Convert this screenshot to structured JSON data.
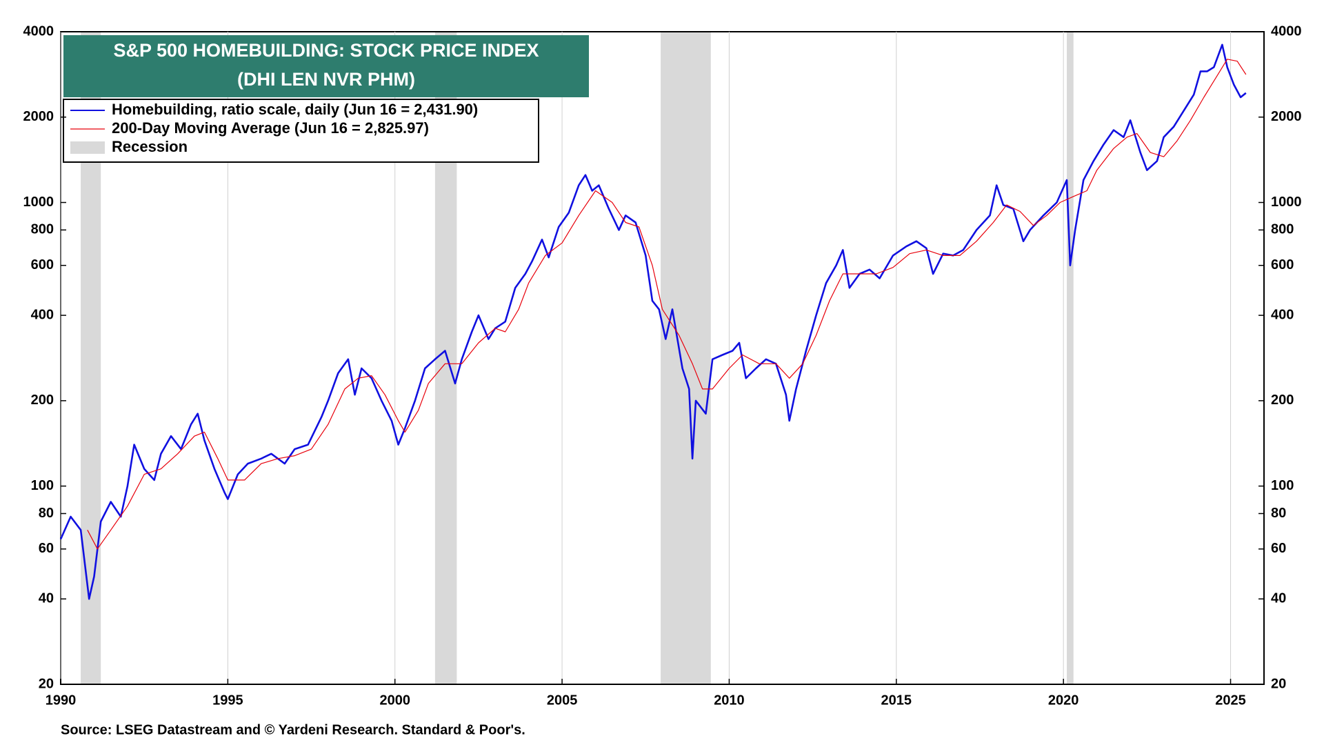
{
  "chart_data": {
    "type": "line",
    "title": "S&P 500 HOMEBUILDING: STOCK PRICE INDEX",
    "subtitle": "(DHI LEN NVR PHM)",
    "note": "Source: LSEG Datastream and © Yardeni Research. Standard & Poor's.",
    "log_scale": true,
    "xlim": [
      1990,
      2026
    ],
    "xticks": [
      1990,
      1995,
      2000,
      2005,
      2010,
      2015,
      2020,
      2025
    ],
    "ylim": [
      20,
      4000
    ],
    "yticks": [
      20,
      40,
      60,
      80,
      100,
      200,
      400,
      600,
      800,
      1000,
      2000,
      4000
    ],
    "y2lim": [
      20,
      4000
    ],
    "y2ticks": [
      20,
      40,
      60,
      80,
      100,
      200,
      400,
      600,
      800,
      1000,
      2000,
      4000
    ],
    "recession_label": "Recession",
    "recession_color": "#d9d9d9",
    "recessions": [
      [
        1990.6,
        1991.2
      ],
      [
        2001.2,
        2001.85
      ],
      [
        2007.95,
        2009.45
      ],
      [
        2020.1,
        2020.3
      ]
    ],
    "series": [
      {
        "name": "Homebuilding, ratio scale, daily (Jun 16 = 2,431.90)",
        "color": "#1010e0",
        "width": 2.6,
        "x": [
          1990.0,
          1990.3,
          1990.6,
          1990.85,
          1991.0,
          1991.2,
          1991.5,
          1991.8,
          1992.0,
          1992.2,
          1992.5,
          1992.8,
          1993.0,
          1993.3,
          1993.6,
          1993.9,
          1994.1,
          1994.3,
          1994.6,
          1994.9,
          1995.0,
          1995.3,
          1995.6,
          1996.0,
          1996.3,
          1996.7,
          1997.0,
          1997.4,
          1997.8,
          1998.0,
          1998.3,
          1998.6,
          1998.8,
          1999.0,
          1999.3,
          1999.6,
          1999.9,
          2000.1,
          2000.3,
          2000.6,
          2000.9,
          2001.2,
          2001.5,
          2001.8,
          2002.0,
          2002.3,
          2002.5,
          2002.8,
          2003.0,
          2003.3,
          2003.6,
          2003.9,
          2004.1,
          2004.4,
          2004.6,
          2004.9,
          2005.2,
          2005.5,
          2005.7,
          2005.9,
          2006.1,
          2006.4,
          2006.7,
          2006.9,
          2007.2,
          2007.5,
          2007.7,
          2007.9,
          2008.1,
          2008.3,
          2008.6,
          2008.8,
          2008.9,
          2009.0,
          2009.3,
          2009.5,
          2009.8,
          2010.1,
          2010.3,
          2010.5,
          2010.8,
          2011.1,
          2011.4,
          2011.7,
          2011.8,
          2012.0,
          2012.3,
          2012.6,
          2012.9,
          2013.2,
          2013.4,
          2013.6,
          2013.9,
          2014.2,
          2014.5,
          2014.9,
          2015.3,
          2015.6,
          2015.9,
          2016.1,
          2016.4,
          2016.7,
          2017.0,
          2017.4,
          2017.8,
          2018.0,
          2018.2,
          2018.5,
          2018.8,
          2019.0,
          2019.4,
          2019.8,
          2020.1,
          2020.2,
          2020.35,
          2020.6,
          2020.9,
          2021.2,
          2021.5,
          2021.8,
          2022.0,
          2022.3,
          2022.5,
          2022.8,
          2023.0,
          2023.3,
          2023.7,
          2023.9,
          2024.1,
          2024.3,
          2024.5,
          2024.75,
          2024.9,
          2025.1,
          2025.3,
          2025.46
        ],
        "values": [
          65,
          78,
          70,
          40,
          48,
          75,
          88,
          78,
          100,
          140,
          115,
          105,
          130,
          150,
          135,
          165,
          180,
          145,
          115,
          95,
          90,
          110,
          120,
          125,
          130,
          120,
          135,
          140,
          175,
          200,
          250,
          280,
          210,
          260,
          240,
          200,
          170,
          140,
          160,
          200,
          260,
          280,
          300,
          230,
          280,
          350,
          400,
          330,
          360,
          380,
          500,
          560,
          620,
          740,
          640,
          820,
          920,
          1150,
          1250,
          1100,
          1150,
          950,
          800,
          900,
          850,
          650,
          450,
          420,
          330,
          420,
          260,
          220,
          125,
          200,
          180,
          280,
          290,
          300,
          320,
          240,
          260,
          280,
          270,
          210,
          170,
          220,
          300,
          400,
          520,
          600,
          680,
          500,
          560,
          580,
          540,
          650,
          700,
          730,
          690,
          560,
          660,
          650,
          680,
          800,
          900,
          1150,
          980,
          950,
          730,
          800,
          900,
          1000,
          1200,
          600,
          800,
          1200,
          1400,
          1600,
          1800,
          1700,
          1950,
          1500,
          1300,
          1400,
          1700,
          1850,
          2200,
          2400,
          2900,
          2900,
          3000,
          3600,
          3000,
          2600,
          2350,
          2431.9
        ]
      },
      {
        "name": "200-Day Moving Average (Jun 16 = 2,825.97)",
        "color": "#e8000b",
        "width": 1.2,
        "x": [
          1990.8,
          1991.1,
          1991.5,
          1992.0,
          1992.5,
          1993.0,
          1993.5,
          1994.0,
          1994.3,
          1994.7,
          1995.0,
          1995.5,
          1996.0,
          1996.5,
          1997.0,
          1997.5,
          1998.0,
          1998.5,
          1998.9,
          1999.3,
          1999.7,
          2000.1,
          2000.3,
          2000.7,
          2001.0,
          2001.5,
          2002.0,
          2002.5,
          2003.0,
          2003.3,
          2003.7,
          2004.0,
          2004.5,
          2005.0,
          2005.5,
          2006.0,
          2006.5,
          2006.9,
          2007.3,
          2007.7,
          2008.0,
          2008.5,
          2008.9,
          2009.2,
          2009.5,
          2010.0,
          2010.4,
          2010.9,
          2011.4,
          2011.8,
          2012.2,
          2012.6,
          2013.0,
          2013.4,
          2013.9,
          2014.4,
          2014.9,
          2015.4,
          2015.9,
          2016.4,
          2016.9,
          2017.4,
          2017.9,
          2018.3,
          2018.7,
          2019.1,
          2019.5,
          2019.9,
          2020.3,
          2020.7,
          2021.0,
          2021.5,
          2021.9,
          2022.2,
          2022.6,
          2023.0,
          2023.4,
          2023.8,
          2024.2,
          2024.6,
          2024.9,
          2025.2,
          2025.46
        ],
        "values": [
          70,
          60,
          70,
          85,
          110,
          115,
          130,
          150,
          155,
          125,
          105,
          105,
          120,
          125,
          128,
          135,
          165,
          220,
          240,
          245,
          210,
          170,
          155,
          185,
          230,
          270,
          270,
          320,
          360,
          350,
          420,
          520,
          650,
          720,
          900,
          1100,
          1000,
          850,
          820,
          600,
          420,
          340,
          270,
          220,
          220,
          260,
          290,
          270,
          270,
          240,
          270,
          340,
          450,
          560,
          560,
          560,
          590,
          660,
          680,
          650,
          650,
          730,
          850,
          980,
          930,
          830,
          900,
          1000,
          1050,
          1100,
          1300,
          1550,
          1700,
          1750,
          1500,
          1450,
          1650,
          1950,
          2350,
          2800,
          3200,
          3150,
          2825.97
        ]
      }
    ]
  }
}
